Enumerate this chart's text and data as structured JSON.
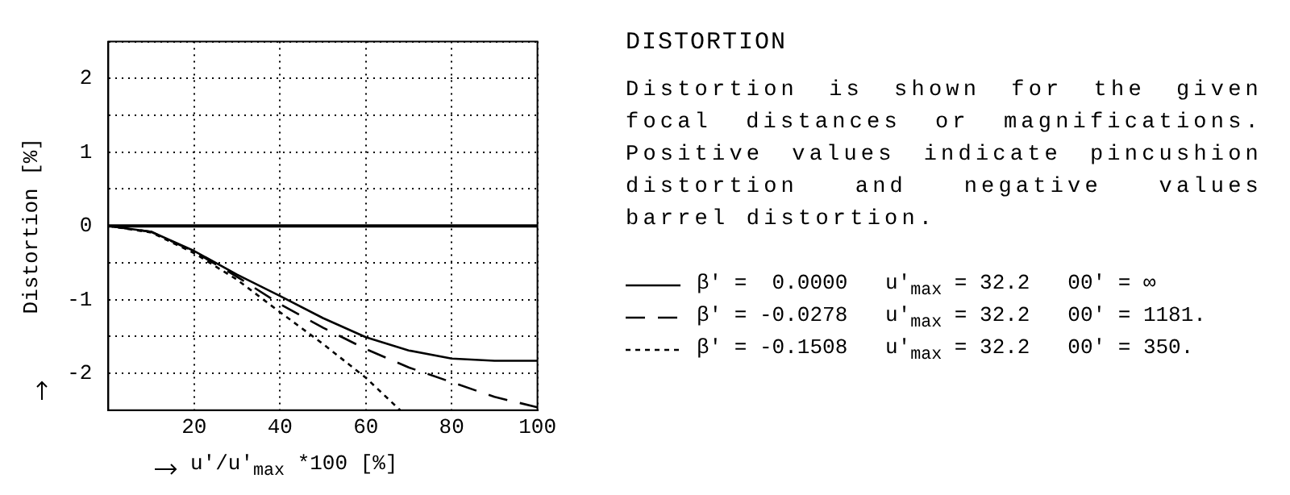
{
  "chart_data": {
    "type": "line",
    "title": "DISTORTION",
    "annotations": [
      "Distortion is shown  for  the given focal distances or  magnifications. Positive values indicate pincushion distortion  and   negative   values barrel distortion."
    ],
    "xlabel": "u'/u'$_{max}$ *100 [%]",
    "ylabel": "Distortion [%]",
    "x": [
      0,
      10,
      20,
      30,
      40,
      50,
      60,
      70,
      80,
      90,
      100
    ],
    "series": [
      {
        "name": "β' =  0.0000   u'$_{max}$ = 32.2   00' = ∞",
        "color": "#000000",
        "line_style": "solid",
        "values": [
          0,
          -0.08,
          -0.34,
          -0.66,
          -0.95,
          -1.25,
          -1.51,
          -1.69,
          -1.8,
          -1.83,
          -1.83
        ]
      },
      {
        "name": "β' = -0.0278   u'$_{max}$ = 32.2   00' = 1181.",
        "color": "#000000",
        "line_style": "dashed",
        "values": [
          0,
          -0.08,
          -0.35,
          -0.69,
          -1.06,
          -1.38,
          -1.67,
          -1.92,
          -2.12,
          -2.32,
          -2.46
        ]
      },
      {
        "name": "β' = -0.1508   u'$_{max}$ = 32.2   00' = 350.",
        "color": "#000000",
        "line_style": "dotted",
        "x": [
          0,
          10,
          20,
          30,
          40,
          50,
          60,
          68
        ],
        "values": [
          0,
          -0.09,
          -0.37,
          -0.73,
          -1.17,
          -1.6,
          -2.06,
          -2.5
        ]
      }
    ],
    "xlim": [
      0,
      100
    ],
    "xticks": [
      {
        "value": 0,
        "label": null
      },
      20,
      40,
      60,
      80,
      100
    ],
    "ylim": [
      -2.5,
      2.5
    ],
    "yticks": [
      {
        "value": -2.5,
        "label": null
      },
      -2,
      {
        "value": -1.5,
        "label": null
      },
      -1,
      {
        "value": -0.5,
        "label": null
      },
      0,
      {
        "value": 0.5,
        "label": null
      },
      1,
      {
        "value": 1.5,
        "label": null
      },
      2,
      {
        "value": 2.5,
        "label": null
      }
    ],
    "ref_lines": [
      {
        "axis": "y",
        "value": 0,
        "color": "#000000"
      }
    ],
    "grid": true,
    "legend": "right",
    "marker": "none"
  }
}
